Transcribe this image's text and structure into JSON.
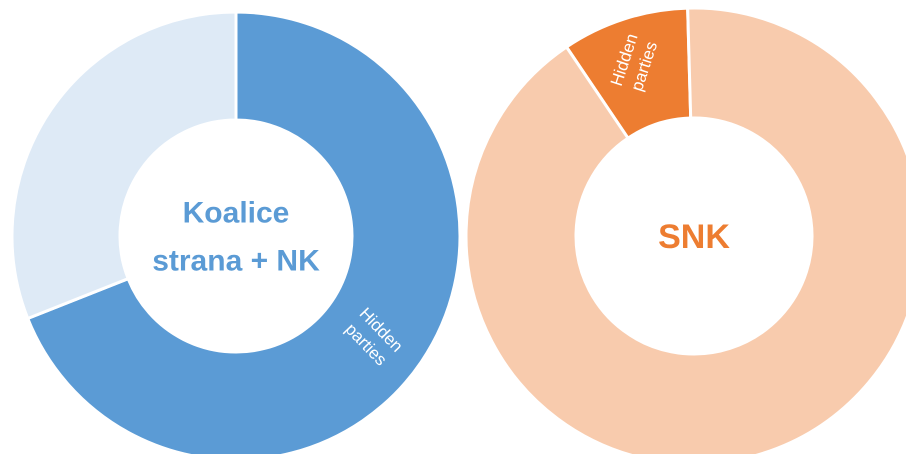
{
  "chart_data": [
    {
      "type": "pie",
      "title": "Koalice strana + NK",
      "title_lines": [
        "Koalice",
        "strana + NK"
      ],
      "colors": {
        "primary": "#5B9BD5",
        "secondary": "#DEEAF6",
        "label": "#5B9BD5",
        "slice_text": "#ffffff"
      },
      "slices": [
        {
          "label_lines": [
            "Hidden",
            "parties"
          ],
          "value": 69
        },
        {
          "label_lines": [],
          "value": 31
        }
      ]
    },
    {
      "type": "pie",
      "title": "SNK",
      "title_lines": [
        "SNK"
      ],
      "colors": {
        "primary": "#ED7D31",
        "secondary": "#F8CBAD",
        "label": "#ED7D31",
        "slice_text": "#ffffff"
      },
      "slices": [
        {
          "label_lines": [
            "Hidden",
            "parties"
          ],
          "value": 9
        },
        {
          "label_lines": [],
          "value": 91
        }
      ]
    }
  ]
}
